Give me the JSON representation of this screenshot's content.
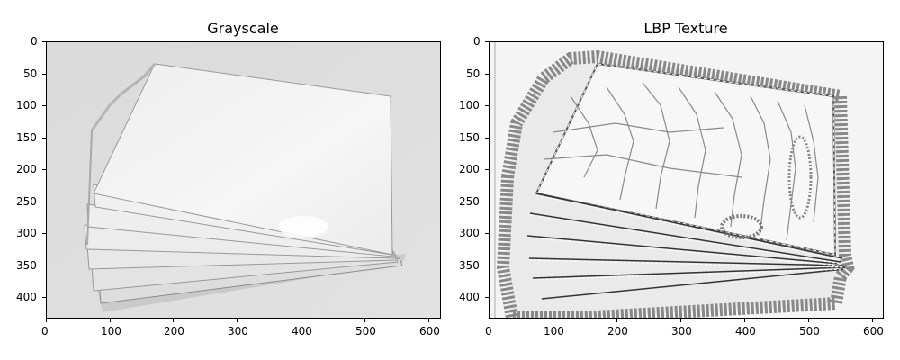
{
  "panels": [
    {
      "title": "Grayscale",
      "x_ticks": [
        "0",
        "100",
        "200",
        "300",
        "400",
        "500",
        "600"
      ],
      "y_ticks": [
        "0",
        "50",
        "100",
        "150",
        "200",
        "250",
        "300",
        "350",
        "400"
      ]
    },
    {
      "title": "LBP Texture",
      "x_ticks": [
        "0",
        "100",
        "200",
        "300",
        "400",
        "500",
        "600"
      ],
      "y_ticks": [
        "0",
        "50",
        "100",
        "150",
        "200",
        "250",
        "300",
        "350",
        "400"
      ]
    }
  ],
  "image_extent": {
    "x": [
      0,
      620
    ],
    "y": [
      435,
      0
    ]
  },
  "colors": {
    "grayscale_background": "#d9d9d9",
    "grayscale_card": "#f2f2f2",
    "lbp_background": "#f4f4f4",
    "lbp_texture": "#808080",
    "lbp_edge": "#ffffff"
  }
}
